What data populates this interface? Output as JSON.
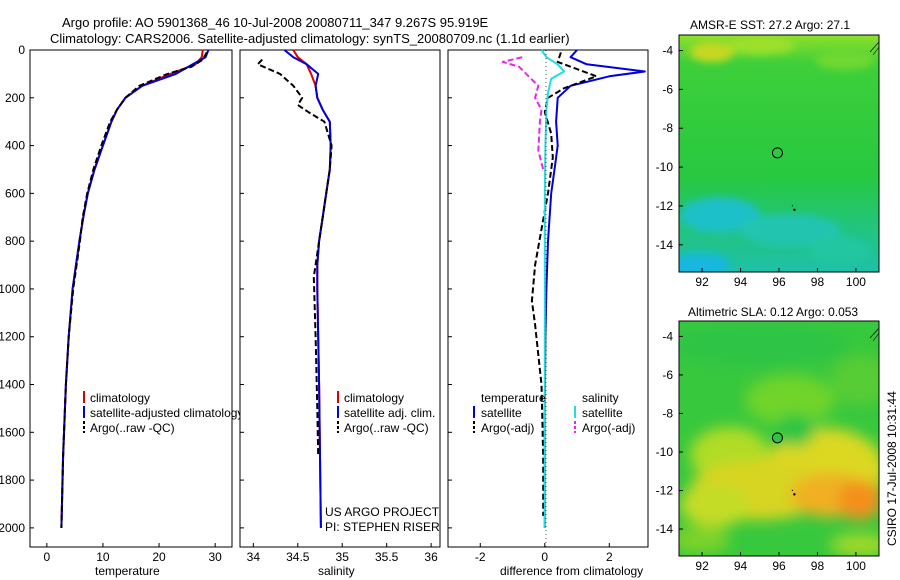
{
  "title": {
    "line1": "Argo profile: AO 5901368_46 10-Jul-2008 20080711_347 9.267S 95.919E",
    "line2": "Climatology: CARS2006. Satellite-adjusted climatology: synTS_20080709.nc (1.1d earlier)"
  },
  "colors": {
    "climatology": "#dd0000",
    "satellite": "#0000dd",
    "argo": "#000000",
    "sal_satellite": "#22dddd",
    "sal_argo": "#ee22ee"
  },
  "side_label": "CSIRO 17-Jul-2008 10:31:44",
  "chart_data": [
    {
      "type": "line",
      "id": "temperature",
      "xlabel": "temperature",
      "ylabel": "",
      "xlim": [
        -3,
        33
      ],
      "ylim": [
        2080,
        0
      ],
      "xticks": [
        0,
        10,
        20,
        30
      ],
      "xtick_labels": [
        "0",
        "10",
        "20",
        "30"
      ],
      "yticks": [
        0,
        200,
        400,
        600,
        800,
        1000,
        1200,
        1400,
        1600,
        1800,
        2000
      ],
      "ytick_labels": [
        "0",
        "200",
        "400",
        "600",
        "800",
        "1000",
        "1200",
        "1400",
        "1600",
        "1800",
        "2000"
      ],
      "legend": [
        "climatology",
        "satellite-adjusted climatology",
        "Argo(..raw -QC)"
      ],
      "series": [
        {
          "name": "climatology",
          "style": "solid",
          "x": [
            27.8,
            27.6,
            26.5,
            22,
            17,
            14,
            12.5,
            11.5,
            10,
            8.5,
            7.3,
            6.5,
            5.8,
            5.2,
            4.6,
            3.9,
            3.4,
            2.9,
            2.6
          ],
          "y": [
            0,
            30,
            60,
            100,
            150,
            200,
            250,
            300,
            400,
            500,
            600,
            700,
            800,
            900,
            1000,
            1200,
            1400,
            1700,
            2000
          ]
        },
        {
          "name": "satellite-adjusted climatology",
          "style": "solid",
          "x": [
            28.8,
            28.3,
            26,
            23,
            17,
            14,
            12.5,
            11.5,
            10,
            8.5,
            7.3,
            6.5,
            5.8,
            5.2,
            4.6,
            3.9,
            3.4,
            2.9,
            2.6
          ],
          "y": [
            0,
            30,
            60,
            100,
            150,
            200,
            250,
            300,
            400,
            500,
            600,
            700,
            800,
            900,
            1000,
            1200,
            1400,
            1700,
            2000
          ]
        },
        {
          "name": "Argo(..raw -QC)",
          "style": "dash",
          "x": [
            28.5,
            27.8,
            25.8,
            21.5,
            16.5,
            14,
            12.5,
            11.3,
            9.7,
            8.3,
            7.2,
            6.4,
            5.9,
            5.6,
            4.7,
            3.9,
            3.4,
            2.9,
            2.6
          ],
          "y": [
            10,
            40,
            70,
            100,
            150,
            200,
            250,
            300,
            400,
            500,
            600,
            700,
            800,
            850,
            1000,
            1200,
            1400,
            1700,
            2000
          ]
        }
      ]
    },
    {
      "type": "line",
      "id": "salinity",
      "xlabel": "salinity",
      "ylabel": "",
      "xlim": [
        33.85,
        36.1
      ],
      "ylim": [
        2080,
        0
      ],
      "xticks": [
        34,
        34.5,
        35,
        35.5,
        36
      ],
      "xtick_labels": [
        "34",
        "34.5",
        "35",
        "35.5",
        "36"
      ],
      "yticks": [
        0,
        200,
        400,
        600,
        800,
        1000,
        1200,
        1400,
        1600,
        1800,
        2000
      ],
      "legend": [
        "climatology",
        "satellite adj. clim.",
        "Argo(..raw -QC)"
      ],
      "annotation": [
        "US ARGO PROJECT",
        "PI: STEPHEN RISER"
      ],
      "series": [
        {
          "name": "climatology",
          "style": "solid",
          "x": [
            34.45,
            34.5,
            34.6,
            34.65,
            34.7,
            34.72,
            34.78,
            34.86,
            34.87,
            34.86,
            34.82,
            34.78,
            34.74,
            34.72,
            34.72,
            34.73,
            34.74,
            34.75,
            34.76
          ],
          "y": [
            0,
            30,
            60,
            100,
            150,
            200,
            250,
            300,
            400,
            500,
            600,
            700,
            800,
            900,
            1000,
            1200,
            1400,
            1700,
            2000
          ]
        },
        {
          "name": "satellite adj. clim.",
          "style": "solid",
          "x": [
            34.35,
            34.45,
            34.6,
            34.73,
            34.7,
            34.72,
            34.78,
            34.86,
            34.87,
            34.86,
            34.82,
            34.78,
            34.74,
            34.72,
            34.72,
            34.73,
            34.74,
            34.75,
            34.76
          ],
          "y": [
            0,
            30,
            60,
            100,
            150,
            200,
            250,
            300,
            400,
            500,
            600,
            700,
            800,
            900,
            1000,
            1200,
            1400,
            1700,
            2000
          ]
        },
        {
          "name": "Argo(..raw -QC)",
          "style": "dash",
          "x": [
            34.1,
            34.05,
            34.3,
            34.45,
            34.55,
            34.5,
            34.62,
            34.8,
            34.88,
            34.86,
            34.82,
            34.78,
            34.74,
            34.68,
            34.7,
            34.72,
            34.73
          ],
          "y": [
            40,
            60,
            100,
            150,
            200,
            230,
            260,
            300,
            400,
            500,
            600,
            700,
            800,
            950,
            1200,
            1500,
            1700
          ]
        }
      ]
    },
    {
      "type": "line",
      "id": "difference",
      "xlabel": "difference from climatology",
      "ylabel": "",
      "xlim": [
        -3,
        3.2
      ],
      "ylim": [
        2080,
        0
      ],
      "xticks": [
        -2,
        0,
        2
      ],
      "xtick_labels": [
        "-2",
        "0",
        "2"
      ],
      "yticks": [
        0,
        200,
        400,
        600,
        800,
        1000,
        1200,
        1400,
        1600,
        1800,
        2000
      ],
      "legend": [
        "temperature",
        "satellite",
        "Argo(-adj)",
        "salinity",
        "satellite",
        "Argo(-adj)"
      ],
      "series": [
        {
          "name": "temperature satellite",
          "style": "solid",
          "x": [
            1,
            0.8,
            1.3,
            3.1,
            2,
            0.8,
            0.4,
            0.35,
            0.4,
            0.3,
            0.2,
            0.1,
            0.05,
            0.02,
            0,
            0,
            0
          ],
          "y": [
            0,
            30,
            60,
            90,
            110,
            150,
            200,
            300,
            400,
            500,
            600,
            800,
            1000,
            1200,
            1500,
            1800,
            2000
          ]
        },
        {
          "name": "temperature Argo(-adj)",
          "style": "dash",
          "x": [
            0.5,
            0.4,
            1,
            1.6,
            0.6,
            0.1,
            0,
            0.2,
            0.25,
            0.1,
            -0.1,
            -0.3,
            -0.4,
            -0.3,
            -0.1,
            -0.05,
            -0.05
          ],
          "y": [
            10,
            50,
            80,
            110,
            160,
            200,
            260,
            350,
            450,
            600,
            750,
            900,
            1050,
            1150,
            1400,
            1700,
            1950
          ]
        },
        {
          "name": "salinity satellite",
          "style": "solid",
          "x": [
            -0.1,
            0.05,
            0.4,
            0.6,
            0.2,
            0.1,
            0.05,
            0.02,
            0,
            0,
            0,
            0,
            0,
            0,
            0
          ],
          "y": [
            0,
            30,
            60,
            90,
            120,
            180,
            250,
            400,
            600,
            800,
            1000,
            1300,
            1600,
            1800,
            2000
          ]
        },
        {
          "name": "salinity Argo(-adj)",
          "style": "dash",
          "x": [
            -0.7,
            -1.3,
            -0.8,
            -0.5,
            -0.2,
            -0.3,
            -0.1,
            -0.15,
            -0.2,
            -0.05
          ],
          "y": [
            30,
            50,
            70,
            110,
            150,
            200,
            250,
            300,
            420,
            500
          ]
        }
      ]
    },
    {
      "type": "heatmap",
      "id": "sst-map",
      "title": "AMSR-E SST: 27.2 Argo: 27.1",
      "xlim": [
        90.8,
        101.2
      ],
      "ylim": [
        -15.4,
        -3.2
      ],
      "xticks": [
        92,
        94,
        96,
        98,
        100
      ],
      "xtick_labels": [
        "92",
        "94",
        "96",
        "98",
        "100"
      ],
      "yticks": [
        -4,
        -6,
        -8,
        -10,
        -12,
        -14
      ],
      "ytick_labels": [
        "-4",
        "-6",
        "-8",
        "-10",
        "-12",
        "-14"
      ],
      "marker": {
        "lon": 95.919,
        "lat": -9.267
      },
      "track_point": {
        "lon": 96.8,
        "lat": -12.2
      }
    },
    {
      "type": "heatmap",
      "id": "sla-map",
      "title": "Altimetric SLA: 0.12 Argo: 0.053",
      "xlim": [
        90.8,
        101.2
      ],
      "ylim": [
        -15.4,
        -3.2
      ],
      "xticks": [
        92,
        94,
        96,
        98,
        100
      ],
      "xtick_labels": [
        "92",
        "94",
        "96",
        "98",
        "100"
      ],
      "yticks": [
        -4,
        -6,
        -8,
        -10,
        -12,
        -14
      ],
      "ytick_labels": [
        "-4",
        "-6",
        "-8",
        "-10",
        "-12",
        "-14"
      ],
      "marker": {
        "lon": 95.919,
        "lat": -9.267
      },
      "track_point": {
        "lon": 96.8,
        "lat": -12.2
      }
    }
  ]
}
